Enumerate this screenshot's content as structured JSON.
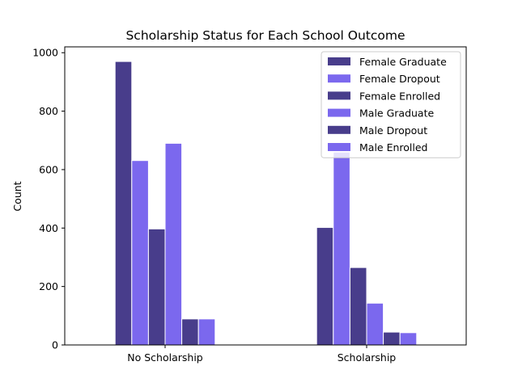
{
  "chart_data": {
    "type": "bar",
    "title": "Scholarship Status for Each School Outcome",
    "xlabel": "",
    "ylabel": "Count",
    "ylim": [
      0,
      1020
    ],
    "yticks": [
      0,
      200,
      400,
      600,
      800,
      1000
    ],
    "categories": [
      "No Scholarship",
      "Scholarship"
    ],
    "grid": false,
    "legend_position": "top-right",
    "series": [
      {
        "name": "Female Graduate",
        "color": "#483d8b",
        "values": [
          970,
          402
        ]
      },
      {
        "name": "Female Dropout",
        "color": "#7b68ee",
        "values": [
          631,
          660
        ]
      },
      {
        "name": "Female Enrolled",
        "color": "#483d8b",
        "values": [
          397,
          265
        ]
      },
      {
        "name": "Male Graduate",
        "color": "#7b68ee",
        "values": [
          690,
          143
        ]
      },
      {
        "name": "Male Dropout",
        "color": "#483d8b",
        "values": [
          89,
          44
        ]
      },
      {
        "name": "Male Enrolled",
        "color": "#7b68ee",
        "values": [
          89,
          42
        ]
      }
    ]
  }
}
